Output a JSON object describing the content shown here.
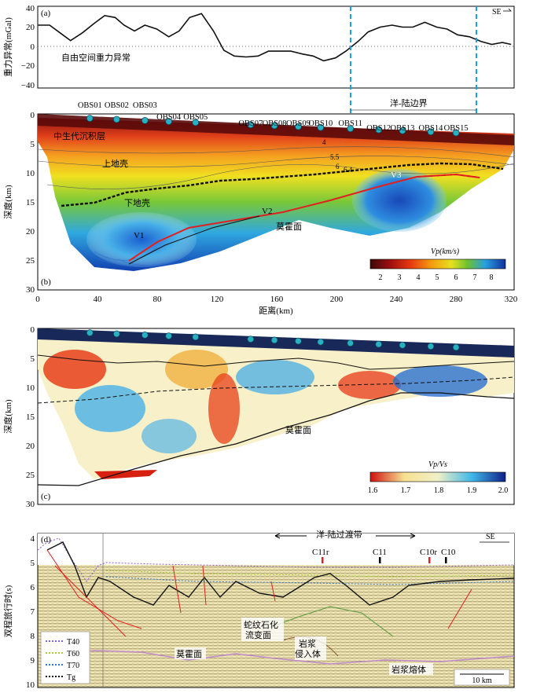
{
  "panel_a": {
    "label": "(a)",
    "ylabel": "重力异常(mGal)",
    "yticks": [
      "40",
      "20",
      "0",
      "−20",
      "−40"
    ],
    "curve_label": "自由空间重力异常",
    "direction": "SE",
    "chart_data": {
      "type": "line",
      "xlabel": "",
      "ylabel": "重力异常(mGal)",
      "xlim": [
        0,
        320
      ],
      "ylim": [
        -40,
        40
      ],
      "series": [
        {
          "x": [
            0,
            8,
            15,
            22,
            30,
            38,
            45,
            52,
            58,
            65,
            72,
            80,
            88,
            95,
            102,
            110,
            118,
            125,
            132,
            140,
            148,
            155,
            162,
            170,
            178,
            185,
            192,
            200,
            207,
            215,
            222,
            230,
            238,
            245,
            252,
            260,
            268,
            275,
            282,
            290,
            298,
            305,
            312,
            318
          ],
          "values": [
            22,
            22,
            14,
            6,
            14,
            24,
            32,
            30,
            22,
            16,
            22,
            18,
            10,
            16,
            30,
            34,
            16,
            -4,
            -10,
            -11,
            -10,
            -5,
            -5,
            -5,
            -8,
            -10,
            -15,
            -12,
            -5,
            5,
            15,
            20,
            22,
            20,
            20,
            25,
            20,
            18,
            12,
            10,
            5,
            2,
            4,
            2
          ]
        }
      ]
    }
  },
  "panel_b": {
    "label": "(b)",
    "ylabel": "深度(km)",
    "xlabel": "距离(km)",
    "xticks": [
      "0",
      "40",
      "80",
      "120",
      "160",
      "200",
      "240",
      "280",
      "320"
    ],
    "yticks": [
      "0",
      "5",
      "10",
      "15",
      "20",
      "25",
      "30"
    ],
    "boundary_label": "洋-陆边界",
    "obs": [
      {
        "name": "OBS01",
        "x": 35
      },
      {
        "name": "OBS02",
        "x": 53
      },
      {
        "name": "OBS03",
        "x": 72
      },
      {
        "name": "OBS04",
        "x": 88
      },
      {
        "name": "OBS05",
        "x": 106
      },
      {
        "name": "OBS07",
        "x": 143
      },
      {
        "name": "OBS08",
        "x": 159
      },
      {
        "name": "OBS09",
        "x": 175
      },
      {
        "name": "OBS10",
        "x": 190
      },
      {
        "name": "OBS11",
        "x": 210
      },
      {
        "name": "OBS12",
        "x": 229
      },
      {
        "name": "OBS13",
        "x": 245
      },
      {
        "name": "OBS14",
        "x": 264
      },
      {
        "name": "OBS15",
        "x": 281
      }
    ],
    "layers": [
      "中生代沉积层",
      "上地壳",
      "下地壳"
    ],
    "labels_v": [
      "V1",
      "V2",
      "V3"
    ],
    "moho_label": "莫霍面",
    "contours": [
      "4",
      "5.5",
      "6",
      "6.4"
    ],
    "colorbar": {
      "title": "Vp(km/s)",
      "ticks": [
        "2",
        "3",
        "4",
        "5",
        "6",
        "7",
        "8"
      ]
    }
  },
  "panel_c": {
    "label": "(c)",
    "ylabel": "深度(km)",
    "yticks": [
      "0",
      "5",
      "10",
      "15",
      "20",
      "25",
      "30"
    ],
    "moho_label": "莫霍面",
    "colorbar": {
      "title": "Vp/Vs",
      "ticks": [
        "1.6",
        "1.7",
        "1.8",
        "1.9",
        "2.0"
      ]
    }
  },
  "panel_d": {
    "label": "(d)",
    "ylabel": "双程旅行时(s)",
    "yticks": [
      "4",
      "5",
      "6",
      "7",
      "8",
      "9",
      "10"
    ],
    "zone": "洋-陆过渡带",
    "direction": "SE",
    "markers": [
      {
        "name": "C11r",
        "color": "#e0202a"
      },
      {
        "name": "C11",
        "color": "#000000"
      },
      {
        "name": "C10r",
        "color": "#e0202a"
      },
      {
        "name": "C10",
        "color": "#000000"
      }
    ],
    "annotations": [
      "蛇纹石化",
      "流变面",
      "岩浆",
      "侵入体",
      "岩浆熔体",
      "莫霍面"
    ],
    "legend": [
      {
        "name": "T40",
        "color": "#8a5cd6"
      },
      {
        "name": "T60",
        "color": "#a8cc32"
      },
      {
        "name": "T70",
        "color": "#3a7ad8"
      },
      {
        "name": "Tg",
        "color": "#111111"
      }
    ],
    "scalebar": "10 km"
  }
}
